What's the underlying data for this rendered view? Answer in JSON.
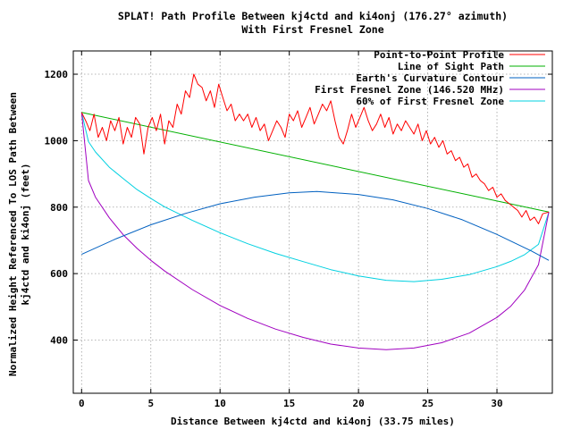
{
  "chart_data": {
    "type": "line",
    "title": "SPLAT! Path Profile Between kj4ctd and ki4onj (176.27° azimuth)",
    "subtitle": "With First Fresnel Zone",
    "xlabel": "Distance Between kj4ctd and ki4onj (33.75 miles)",
    "ylabel_line1": "Normalized Height Referenced To LOS Path Between",
    "ylabel_line2": "kj4ctd and ki4onj (feet)",
    "xlim": [
      -0.6,
      34.0
    ],
    "ylim": [
      240,
      1270
    ],
    "x_ticks": [
      0,
      5,
      10,
      15,
      20,
      25,
      30
    ],
    "y_ticks": [
      400,
      600,
      800,
      1000,
      1200
    ],
    "grid": true,
    "legend_position": "top-right",
    "series": [
      {
        "name": "Point-to-Point Profile",
        "color": "#ff0000",
        "x": [
          0,
          0.3,
          0.6,
          0.9,
          1.2,
          1.5,
          1.8,
          2.1,
          2.4,
          2.7,
          3.0,
          3.3,
          3.6,
          3.9,
          4.2,
          4.5,
          4.8,
          5.1,
          5.4,
          5.7,
          6.0,
          6.3,
          6.6,
          6.9,
          7.2,
          7.5,
          7.8,
          8.1,
          8.4,
          8.7,
          9.0,
          9.3,
          9.6,
          9.9,
          10.2,
          10.5,
          10.8,
          11.1,
          11.4,
          11.7,
          12.0,
          12.3,
          12.6,
          12.9,
          13.2,
          13.5,
          13.8,
          14.1,
          14.4,
          14.7,
          15.0,
          15.3,
          15.6,
          15.9,
          16.2,
          16.5,
          16.8,
          17.1,
          17.4,
          17.7,
          18.0,
          18.3,
          18.6,
          18.9,
          19.2,
          19.5,
          19.8,
          20.1,
          20.4,
          20.7,
          21.0,
          21.3,
          21.6,
          21.9,
          22.2,
          22.5,
          22.8,
          23.1,
          23.4,
          23.7,
          24.0,
          24.3,
          24.6,
          24.9,
          25.2,
          25.5,
          25.8,
          26.1,
          26.4,
          26.7,
          27.0,
          27.3,
          27.6,
          27.9,
          28.2,
          28.5,
          28.8,
          29.1,
          29.4,
          29.7,
          30.0,
          30.3,
          30.6,
          30.9,
          31.2,
          31.5,
          31.8,
          32.1,
          32.4,
          32.7,
          33.0,
          33.3,
          33.75
        ],
        "values": [
          1085,
          1060,
          1030,
          1080,
          1010,
          1040,
          1000,
          1060,
          1030,
          1070,
          990,
          1040,
          1010,
          1070,
          1050,
          960,
          1040,
          1070,
          1030,
          1080,
          990,
          1060,
          1040,
          1110,
          1080,
          1150,
          1130,
          1200,
          1170,
          1160,
          1120,
          1150,
          1100,
          1170,
          1130,
          1090,
          1110,
          1060,
          1080,
          1060,
          1080,
          1040,
          1070,
          1030,
          1050,
          1000,
          1030,
          1060,
          1040,
          1010,
          1080,
          1060,
          1090,
          1040,
          1070,
          1100,
          1050,
          1080,
          1110,
          1090,
          1120,
          1060,
          1010,
          990,
          1030,
          1080,
          1040,
          1070,
          1100,
          1060,
          1030,
          1050,
          1080,
          1040,
          1070,
          1020,
          1050,
          1030,
          1060,
          1040,
          1020,
          1050,
          1000,
          1030,
          990,
          1010,
          980,
          1000,
          960,
          970,
          940,
          950,
          920,
          930,
          890,
          900,
          880,
          870,
          850,
          860,
          830,
          840,
          820,
          810,
          800,
          790,
          770,
          790,
          760,
          770,
          750,
          780,
          785
        ]
      },
      {
        "name": "Line of Sight Path",
        "color": "#00b000",
        "x": [
          0,
          33.75
        ],
        "values": [
          1085,
          785
        ]
      },
      {
        "name": "Earth's Curvature Contour",
        "color": "#0060c0",
        "x": [
          0,
          2.5,
          5,
          7.5,
          10,
          12.5,
          15,
          17,
          20,
          22.5,
          25,
          27.5,
          30,
          32.5,
          33.75
        ],
        "values": [
          658,
          705,
          747,
          781,
          810,
          830,
          843,
          847,
          838,
          822,
          796,
          762,
          718,
          668,
          640
        ]
      },
      {
        "name": "First Fresnel Zone (146.520 MHz)",
        "color": "#a000c0",
        "x": [
          0,
          0.5,
          1,
          2,
          3,
          4,
          5,
          6,
          8,
          10,
          12,
          14,
          16,
          18,
          20,
          22,
          24,
          26,
          28,
          30,
          31,
          32,
          33,
          33.75
        ],
        "values": [
          1085,
          880,
          830,
          768,
          717,
          676,
          640,
          608,
          552,
          504,
          465,
          433,
          408,
          388,
          376,
          371,
          376,
          392,
          421,
          468,
          502,
          551,
          627,
          785
        ]
      },
      {
        "name": "60% of First Fresnel Zone",
        "color": "#00d0e0",
        "x": [
          0,
          0.5,
          1,
          2,
          3,
          4,
          5,
          6,
          8,
          10,
          12,
          14,
          16,
          18,
          20,
          22,
          24,
          26,
          28,
          30,
          31,
          32,
          33,
          33.75
        ],
        "values": [
          1085,
          997,
          966,
          920,
          886,
          853,
          826,
          801,
          760,
          723,
          690,
          661,
          636,
          612,
          593,
          580,
          576,
          583,
          597,
          621,
          637,
          657,
          688,
          785
        ]
      }
    ]
  }
}
